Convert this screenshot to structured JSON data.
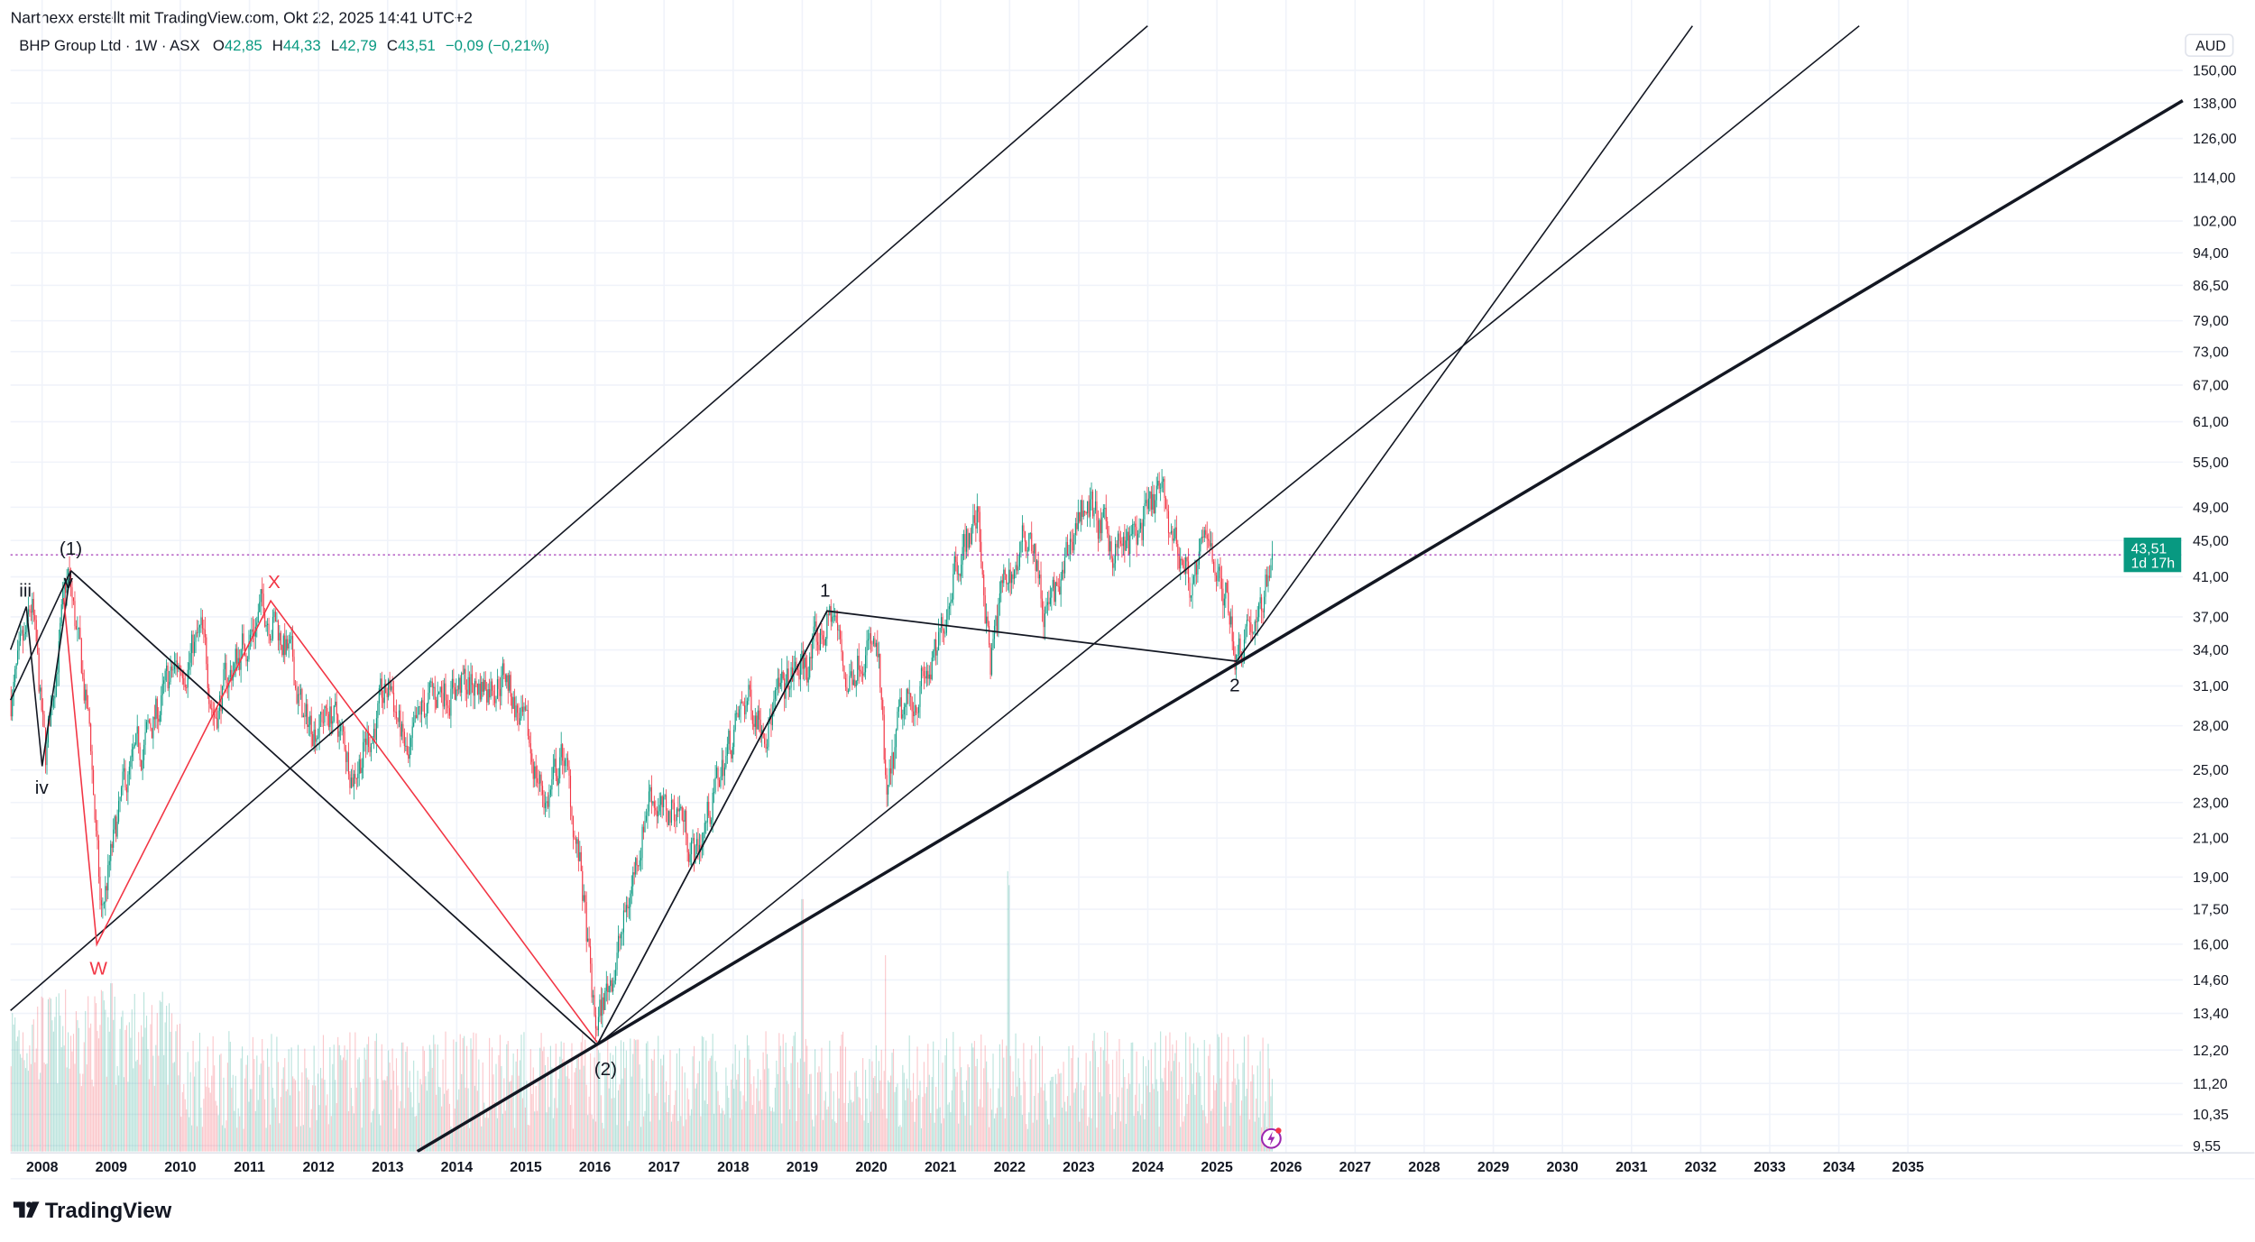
{
  "header": {
    "attribution": "Narthexx erstellt mit TradingView.com, Okt 22, 2025 14:41 UTC+2"
  },
  "legend": {
    "symbol": "BHP Group Ltd · 1W · ASX",
    "open_label": "O",
    "open": "42,85",
    "high_label": "H",
    "high": "44,33",
    "low_label": "L",
    "low": "42,79",
    "close_label": "C",
    "close": "43,51",
    "change": "−0,09 (−0,21%)"
  },
  "price_axis": {
    "currency": "AUD",
    "labels": [
      "150,00",
      "138,00",
      "126,00",
      "114,00",
      "102,00",
      "94,00",
      "86,50",
      "79,00",
      "73,00",
      "67,00",
      "61,00",
      "55,00",
      "49,00",
      "45,00",
      "41,00",
      "37,00",
      "34,00",
      "31,00",
      "28,00",
      "25,00",
      "23,00",
      "21,00",
      "19,00",
      "17,50",
      "16,00",
      "14,60",
      "13,40",
      "12,20",
      "11,20",
      "10,35",
      "9,55"
    ],
    "current_price": "43,51",
    "countdown": "1d 17h"
  },
  "time_axis": {
    "labels": [
      "2008",
      "2009",
      "2010",
      "2011",
      "2012",
      "2013",
      "2014",
      "2015",
      "2016",
      "2017",
      "2018",
      "2019",
      "2020",
      "2021",
      "2022",
      "2023",
      "2024",
      "2025",
      "2026",
      "2027",
      "2028",
      "2029",
      "2030",
      "2031",
      "2032",
      "2033",
      "2034",
      "2035"
    ]
  },
  "annotations": {
    "wave_1_major": "(1)",
    "wave_iii": "iii",
    "wave_iv": "iv",
    "wave_v": "v",
    "wave_w": "W",
    "wave_x": "X",
    "wave_2_major": "(2)",
    "wave_1_minor": "1",
    "wave_2_minor": "2"
  },
  "branding": {
    "logo": "TradingView"
  },
  "colors": {
    "up": "#089981",
    "down": "#f23645",
    "accent_purple": "#9c27b0"
  },
  "chart_data": {
    "type": "candlestick",
    "title": "BHP Group Ltd · 1W · ASX",
    "scale": "log",
    "ylim": [
      9.55,
      150
    ],
    "xlim": [
      2007.55,
      2036.2
    ],
    "ylabel": "AUD",
    "grid": true,
    "price_keypoints": [
      [
        2007.55,
        30
      ],
      [
        2007.75,
        34
      ],
      [
        2007.85,
        38
      ],
      [
        2007.95,
        31
      ],
      [
        2008.05,
        25.5
      ],
      [
        2008.2,
        33
      ],
      [
        2008.38,
        41
      ],
      [
        2008.55,
        33
      ],
      [
        2008.7,
        27
      ],
      [
        2008.85,
        17
      ],
      [
        2008.95,
        19
      ],
      [
        2009.2,
        24
      ],
      [
        2009.5,
        27
      ],
      [
        2009.9,
        32
      ],
      [
        2010.3,
        35
      ],
      [
        2010.5,
        29
      ],
      [
        2010.8,
        33
      ],
      [
        2011.2,
        38
      ],
      [
        2011.35,
        37
      ],
      [
        2011.6,
        33
      ],
      [
        2011.8,
        28
      ],
      [
        2012.2,
        29
      ],
      [
        2012.5,
        25
      ],
      [
        2012.8,
        28
      ],
      [
        2013.05,
        31
      ],
      [
        2013.3,
        25
      ],
      [
        2013.5,
        29
      ],
      [
        2013.8,
        31
      ],
      [
        2014.3,
        31
      ],
      [
        2014.7,
        32
      ],
      [
        2015.0,
        27
      ],
      [
        2015.3,
        23
      ],
      [
        2015.55,
        26
      ],
      [
        2015.8,
        19
      ],
      [
        2016.0,
        12.8
      ],
      [
        2016.15,
        14
      ],
      [
        2016.4,
        16.5
      ],
      [
        2016.8,
        24
      ],
      [
        2017.0,
        22
      ],
      [
        2017.2,
        23
      ],
      [
        2017.45,
        20
      ],
      [
        2017.9,
        26
      ],
      [
        2018.2,
        30
      ],
      [
        2018.5,
        28.5
      ],
      [
        2018.9,
        32
      ],
      [
        2019.1,
        33
      ],
      [
        2019.45,
        37.5
      ],
      [
        2019.65,
        31
      ],
      [
        2019.9,
        35
      ],
      [
        2020.1,
        33
      ],
      [
        2020.22,
        22.5
      ],
      [
        2020.4,
        28
      ],
      [
        2020.7,
        31
      ],
      [
        2020.95,
        33
      ],
      [
        2021.2,
        43
      ],
      [
        2021.45,
        46
      ],
      [
        2021.55,
        48
      ],
      [
        2021.72,
        32.5
      ],
      [
        2021.9,
        40
      ],
      [
        2022.15,
        43
      ],
      [
        2022.3,
        47
      ],
      [
        2022.5,
        37
      ],
      [
        2022.75,
        40
      ],
      [
        2022.95,
        47
      ],
      [
        2023.1,
        50
      ],
      [
        2023.4,
        45
      ],
      [
        2023.7,
        44
      ],
      [
        2024.05,
        48
      ],
      [
        2024.15,
        51
      ],
      [
        2024.35,
        46
      ],
      [
        2024.65,
        40
      ],
      [
        2024.9,
        46
      ],
      [
        2025.05,
        40
      ],
      [
        2025.2,
        38
      ],
      [
        2025.27,
        33.5
      ],
      [
        2025.45,
        37
      ],
      [
        2025.6,
        36
      ],
      [
        2025.75,
        42
      ],
      [
        2025.8,
        43.51
      ]
    ],
    "volume_spikes": [
      [
        2009.0,
        0.6
      ],
      [
        2019.0,
        0.9
      ],
      [
        2020.2,
        0.7
      ],
      [
        2021.97,
        1.0
      ],
      [
        2021.99,
        0.95
      ]
    ],
    "last": {
      "open": 42.85,
      "high": 44.33,
      "low": 42.79,
      "close": 43.51
    }
  }
}
